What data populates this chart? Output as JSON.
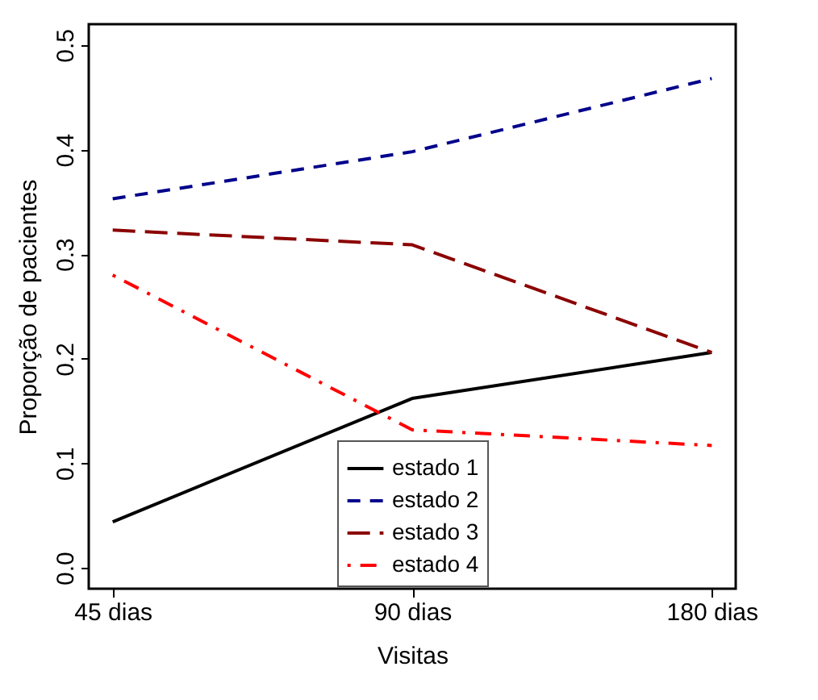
{
  "chart_data": {
    "type": "line",
    "xlabel": "Visitas",
    "ylabel": "Proporção de pacientes",
    "categories": [
      "45 dias",
      "90 dias",
      "180 dias"
    ],
    "series": [
      {
        "name": "estado 1",
        "color": "#000000",
        "line_style": "solid",
        "values": [
          0.044,
          0.162,
          0.206
        ]
      },
      {
        "name": "estado 2",
        "color": "#00008b",
        "line_style": "dashed",
        "values": [
          0.353,
          0.398,
          0.468
        ]
      },
      {
        "name": "estado 3",
        "color": "#8b0000",
        "line_style": "longdash",
        "values": [
          0.323,
          0.309,
          0.206
        ]
      },
      {
        "name": "estado 4",
        "color": "#ff0000",
        "line_style": "dashdot",
        "values": [
          0.28,
          0.132,
          0.117
        ]
      }
    ],
    "ylim": [
      -0.02,
      0.52
    ],
    "yticks": [
      {
        "value": 0,
        "label": "0.0"
      },
      {
        "value": 0.1,
        "label": "0.1"
      },
      {
        "value": 0.2,
        "label": "0.2"
      },
      {
        "value": 0.3,
        "label": "0.3"
      },
      {
        "value": 0.4,
        "label": "0.4"
      },
      {
        "value": 0.5,
        "label": "0.5"
      }
    ],
    "grid": false,
    "legend": "bottom",
    "marker": "none"
  }
}
